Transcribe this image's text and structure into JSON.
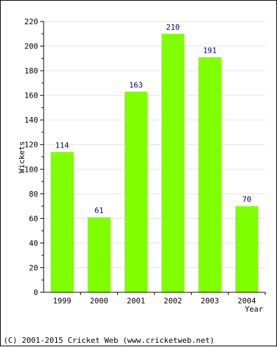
{
  "chart_data": {
    "type": "bar",
    "categories": [
      "1999",
      "2000",
      "2001",
      "2002",
      "2003",
      "2004"
    ],
    "values": [
      114,
      61,
      163,
      210,
      191,
      70
    ],
    "title": "",
    "xlabel": "Year",
    "ylabel": "Wickets",
    "ylim": [
      0,
      220
    ],
    "yticks": [
      0,
      20,
      40,
      60,
      80,
      100,
      120,
      140,
      160,
      180,
      200,
      220
    ],
    "grid": true,
    "bar_color": "#80ff00",
    "label_color": "#000080"
  },
  "footer": {
    "copyright": "(C) 2001-2015 Cricket Web (www.cricketweb.net)"
  }
}
